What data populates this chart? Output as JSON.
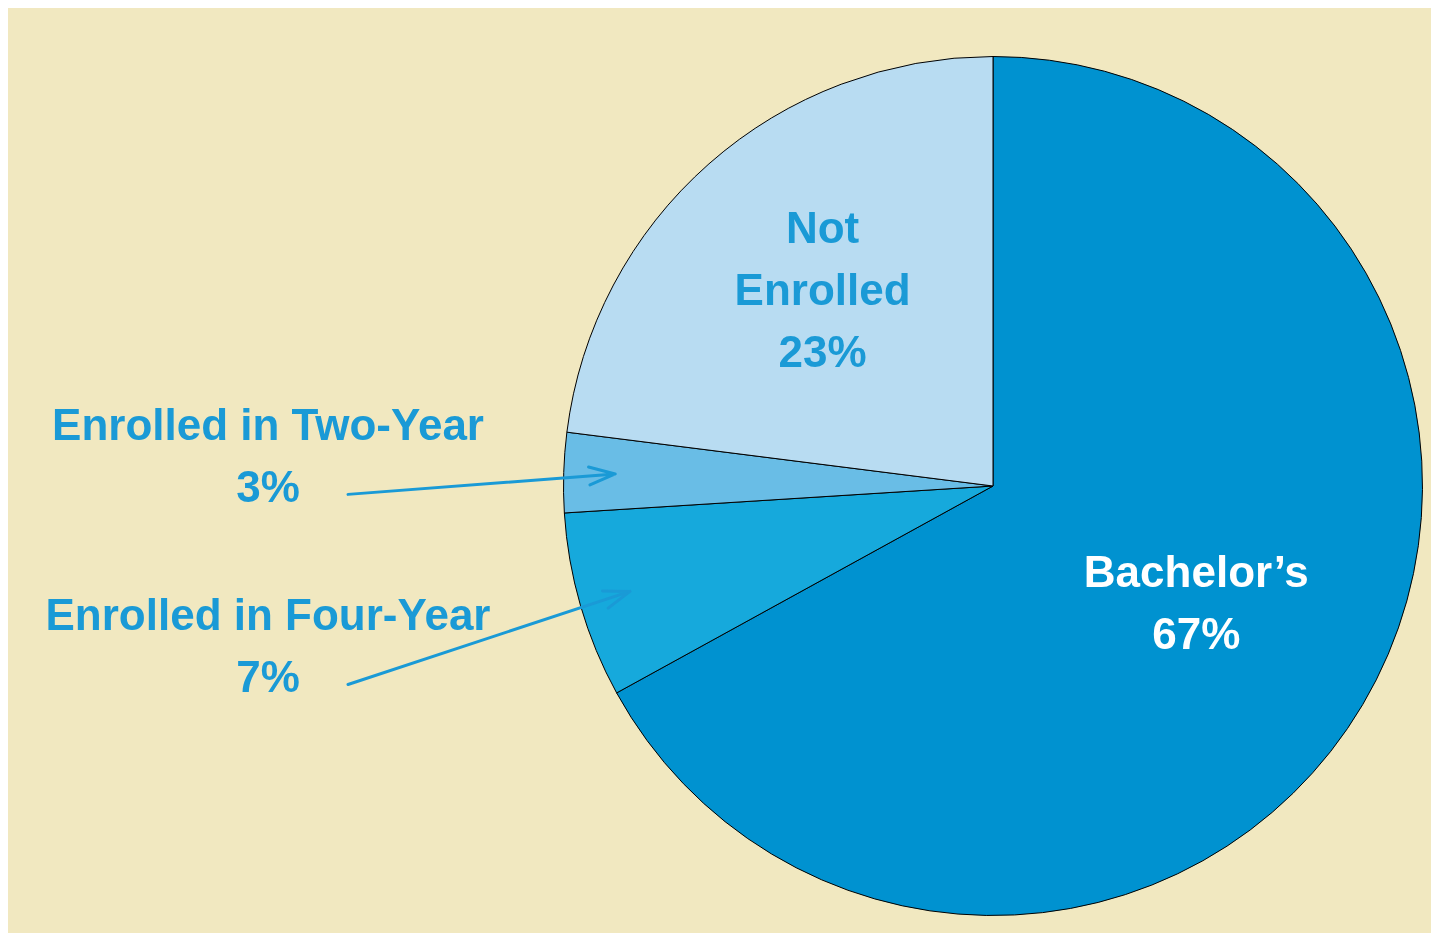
{
  "chart_data": {
    "type": "pie",
    "categories": [
      "Bachelor’s",
      "Enrolled in Four-Year",
      "Enrolled in Two-Year",
      "Not Enrolled"
    ],
    "values": [
      67,
      7,
      3,
      23
    ],
    "colors": [
      "#0092d0",
      "#16a9dc",
      "#69bde6",
      "#b8dcf2"
    ],
    "value_labels": [
      "67%",
      "7%",
      "3%",
      "23%"
    ],
    "legend": false
  }
}
